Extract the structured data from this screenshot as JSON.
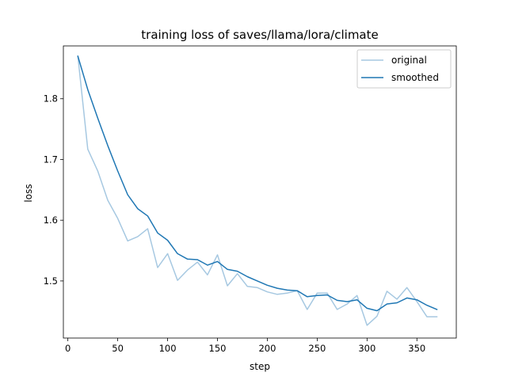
{
  "chart_data": {
    "type": "line",
    "title": "training loss of saves/llama/lora/climate",
    "xlabel": "step",
    "ylabel": "loss",
    "xlim": [
      -4.5,
      389.5
    ],
    "ylim": [
      1.406,
      1.887
    ],
    "x_ticks": [
      0,
      50,
      100,
      150,
      200,
      250,
      300,
      350
    ],
    "y_ticks": [
      1.5,
      1.6,
      1.7,
      1.8
    ],
    "x_tick_labels": [
      "0",
      "50",
      "100",
      "150",
      "200",
      "250",
      "300",
      "350"
    ],
    "y_tick_labels": [
      "1.5",
      "1.6",
      "1.7",
      "1.8"
    ],
    "grid": false,
    "legend_position": "upper right",
    "x": [
      10,
      20,
      30,
      40,
      50,
      60,
      70,
      80,
      90,
      100,
      110,
      120,
      130,
      140,
      150,
      160,
      170,
      180,
      190,
      200,
      210,
      220,
      230,
      240,
      250,
      260,
      270,
      280,
      290,
      300,
      310,
      320,
      330,
      340,
      350,
      360,
      370
    ],
    "series": [
      {
        "name": "original",
        "color": "#a6c8e1",
        "values": [
          1.87,
          1.717,
          1.681,
          1.633,
          1.603,
          1.566,
          1.573,
          1.586,
          1.522,
          1.545,
          1.501,
          1.518,
          1.531,
          1.51,
          1.543,
          1.492,
          1.512,
          1.491,
          1.489,
          1.482,
          1.478,
          1.48,
          1.484,
          1.453,
          1.48,
          1.48,
          1.453,
          1.462,
          1.476,
          1.427,
          1.442,
          1.483,
          1.47,
          1.489,
          1.466,
          1.441,
          1.441
        ]
      },
      {
        "name": "smoothed",
        "color": "#1f77b4",
        "values": [
          1.87,
          1.815,
          1.768,
          1.723,
          1.681,
          1.642,
          1.619,
          1.607,
          1.579,
          1.567,
          1.545,
          1.536,
          1.535,
          1.526,
          1.532,
          1.519,
          1.516,
          1.507,
          1.5,
          1.493,
          1.488,
          1.485,
          1.484,
          1.474,
          1.476,
          1.477,
          1.468,
          1.466,
          1.469,
          1.455,
          1.451,
          1.462,
          1.464,
          1.472,
          1.469,
          1.46,
          1.453
        ]
      }
    ]
  }
}
